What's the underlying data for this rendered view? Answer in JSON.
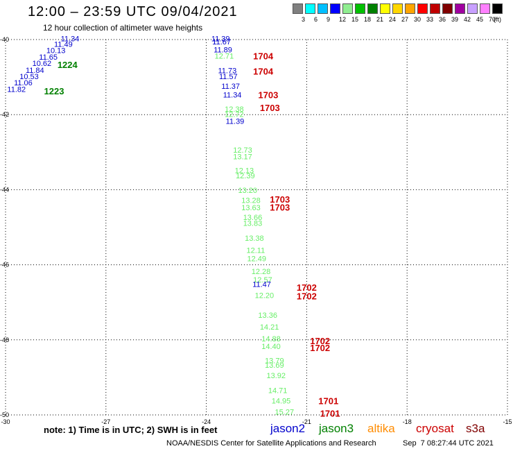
{
  "header": {
    "title": "12:00 – 23:59 UTC 09/04/2021",
    "subtitle": "12 hour collection of altimeter wave heights"
  },
  "legend": {
    "unit": "(ft)",
    "bins": [
      {
        "label": "3",
        "color": "#808080"
      },
      {
        "label": "6",
        "color": "#00ffff"
      },
      {
        "label": "9",
        "color": "#00bfff"
      },
      {
        "label": "12",
        "color": "#0000ff"
      },
      {
        "label": "15",
        "color": "#90ee90"
      },
      {
        "label": "18",
        "color": "#00c000"
      },
      {
        "label": "21",
        "color": "#008000"
      },
      {
        "label": "24",
        "color": "#ffff00"
      },
      {
        "label": "27",
        "color": "#ffd700"
      },
      {
        "label": "30",
        "color": "#ffa500"
      },
      {
        "label": "33",
        "color": "#ff0000"
      },
      {
        "label": "36",
        "color": "#c00000"
      },
      {
        "label": "39",
        "color": "#800000"
      },
      {
        "label": "42",
        "color": "#a000a0"
      },
      {
        "label": "45",
        "color": "#c8a0ff"
      },
      {
        "label": "70",
        "color": "#ff80ff"
      },
      {
        "label": "",
        "color": "#000000"
      }
    ]
  },
  "map": {
    "lon_ticks": [
      "-30",
      "-27",
      "-24",
      "-21",
      "-18",
      "-15"
    ],
    "lat_ticks": [
      "-40",
      "-42",
      "-44",
      "-46",
      "-48",
      "-50"
    ],
    "lon_range": [
      -30,
      -15
    ],
    "lat_range": [
      -50,
      -40
    ],
    "grid": "dotted"
  },
  "observations": [
    {
      "value": "11.34",
      "lon": -28.35,
      "lat": -39.97,
      "color": "#0000cc"
    },
    {
      "value": "11.49",
      "lon": -28.55,
      "lat": -40.12,
      "color": "#0000cc"
    },
    {
      "value": "10.13",
      "lon": -28.78,
      "lat": -40.29,
      "color": "#0000cc"
    },
    {
      "value": "11.65",
      "lon": -29.0,
      "lat": -40.46,
      "color": "#0000cc"
    },
    {
      "value": "10.62",
      "lon": -29.2,
      "lat": -40.63,
      "color": "#0000cc"
    },
    {
      "value": "11.84",
      "lon": -29.4,
      "lat": -40.81,
      "color": "#0000cc"
    },
    {
      "value": "10.53",
      "lon": -29.58,
      "lat": -40.98,
      "color": "#0000cc"
    },
    {
      "value": "11.06",
      "lon": -29.75,
      "lat": -41.15,
      "color": "#0000cc"
    },
    {
      "value": "11.82",
      "lon": -29.95,
      "lat": -41.32,
      "color": "#0000cc"
    },
    {
      "value": "11.39",
      "lon": -23.85,
      "lat": -39.97,
      "color": "#0000cc"
    },
    {
      "value": "11.67",
      "lon": -23.82,
      "lat": -40.06,
      "color": "#0000cc"
    },
    {
      "value": "11.89",
      "lon": -23.78,
      "lat": -40.27,
      "color": "#0000cc"
    },
    {
      "value": "12.71",
      "lon": -23.75,
      "lat": -40.43,
      "color": "#66ee66"
    },
    {
      "value": "11.73",
      "lon": -23.65,
      "lat": -40.82,
      "color": "#0000cc"
    },
    {
      "value": "11.57",
      "lon": -23.62,
      "lat": -40.98,
      "color": "#0000cc"
    },
    {
      "value": "11.37",
      "lon": -23.55,
      "lat": -41.24,
      "color": "#0000cc"
    },
    {
      "value": "11.34",
      "lon": -23.5,
      "lat": -41.47,
      "color": "#0000cc"
    },
    {
      "value": "12.38",
      "lon": -23.45,
      "lat": -41.85,
      "color": "#66ee66"
    },
    {
      "value": "12.72",
      "lon": -23.45,
      "lat": -41.99,
      "color": "#66ee66"
    },
    {
      "value": "11.39",
      "lon": -23.42,
      "lat": -42.17,
      "color": "#0000cc"
    },
    {
      "value": "12.73",
      "lon": -23.2,
      "lat": -42.94,
      "color": "#66ee66"
    },
    {
      "value": "13.17",
      "lon": -23.2,
      "lat": -43.11,
      "color": "#66ee66"
    },
    {
      "value": "12.13",
      "lon": -23.15,
      "lat": -43.48,
      "color": "#66ee66"
    },
    {
      "value": "12.39",
      "lon": -23.12,
      "lat": -43.62,
      "color": "#66ee66"
    },
    {
      "value": "13.20",
      "lon": -23.05,
      "lat": -44.01,
      "color": "#66ee66"
    },
    {
      "value": "13.28",
      "lon": -22.95,
      "lat": -44.28,
      "color": "#66ee66"
    },
    {
      "value": "13.63",
      "lon": -22.95,
      "lat": -44.47,
      "color": "#66ee66"
    },
    {
      "value": "13.66",
      "lon": -22.9,
      "lat": -44.73,
      "color": "#66ee66"
    },
    {
      "value": "13.83",
      "lon": -22.9,
      "lat": -44.89,
      "color": "#66ee66"
    },
    {
      "value": "13.38",
      "lon": -22.85,
      "lat": -45.29,
      "color": "#66ee66"
    },
    {
      "value": "12.11",
      "lon": -22.8,
      "lat": -45.61,
      "color": "#66ee66"
    },
    {
      "value": "12.49",
      "lon": -22.78,
      "lat": -45.83,
      "color": "#66ee66"
    },
    {
      "value": "12.28",
      "lon": -22.65,
      "lat": -46.17,
      "color": "#66ee66"
    },
    {
      "value": "12.57",
      "lon": -22.6,
      "lat": -46.4,
      "color": "#66ee66"
    },
    {
      "value": "11.47",
      "lon": -22.62,
      "lat": -46.52,
      "color": "#0000cc"
    },
    {
      "value": "12.20",
      "lon": -22.55,
      "lat": -46.81,
      "color": "#66ee66"
    },
    {
      "value": "13.36",
      "lon": -22.45,
      "lat": -47.34,
      "color": "#66ee66"
    },
    {
      "value": "14.21",
      "lon": -22.4,
      "lat": -47.65,
      "color": "#66ee66"
    },
    {
      "value": "14.88",
      "lon": -22.35,
      "lat": -47.97,
      "color": "#66ee66"
    },
    {
      "value": "14.40",
      "lon": -22.35,
      "lat": -48.17,
      "color": "#66ee66"
    },
    {
      "value": "13.79",
      "lon": -22.25,
      "lat": -48.55,
      "color": "#66ee66"
    },
    {
      "value": "13.69",
      "lon": -22.25,
      "lat": -48.67,
      "color": "#66ee66"
    },
    {
      "value": "13.92",
      "lon": -22.2,
      "lat": -48.95,
      "color": "#66ee66"
    },
    {
      "value": "14.71",
      "lon": -22.15,
      "lat": -49.34,
      "color": "#66ee66"
    },
    {
      "value": "14.95",
      "lon": -22.05,
      "lat": -49.62,
      "color": "#66ee66"
    },
    {
      "value": "15.27",
      "lon": -21.95,
      "lat": -49.92,
      "color": "#66ee66"
    }
  ],
  "time_markers": [
    {
      "value": "1224",
      "lon": -28.45,
      "lat": -40.67,
      "color": "#008000"
    },
    {
      "value": "1223",
      "lon": -28.85,
      "lat": -41.37,
      "color": "#008000"
    },
    {
      "value": "1704",
      "lon": -22.6,
      "lat": -40.43,
      "color": "#cc0000"
    },
    {
      "value": "1704",
      "lon": -22.6,
      "lat": -40.84,
      "color": "#cc0000"
    },
    {
      "value": "1703",
      "lon": -22.45,
      "lat": -41.47,
      "color": "#cc0000"
    },
    {
      "value": "1703",
      "lon": -22.4,
      "lat": -41.81,
      "color": "#cc0000"
    },
    {
      "value": "1703",
      "lon": -22.1,
      "lat": -44.25,
      "color": "#cc0000"
    },
    {
      "value": "1703",
      "lon": -22.1,
      "lat": -44.46,
      "color": "#cc0000"
    },
    {
      "value": "1702",
      "lon": -21.3,
      "lat": -46.6,
      "color": "#cc0000"
    },
    {
      "value": "1702",
      "lon": -21.3,
      "lat": -46.83,
      "color": "#cc0000"
    },
    {
      "value": "1702",
      "lon": -20.9,
      "lat": -48.02,
      "color": "#cc0000"
    },
    {
      "value": "1702",
      "lon": -20.9,
      "lat": -48.21,
      "color": "#cc0000"
    },
    {
      "value": "1701",
      "lon": -20.65,
      "lat": -49.62,
      "color": "#cc0000"
    },
    {
      "value": "1701",
      "lon": -20.6,
      "lat": -49.95,
      "color": "#cc0000"
    }
  ],
  "footer": {
    "note": "note: 1) Time is in UTC; 2) SWH is in feet",
    "satellites": [
      {
        "name": "jason2",
        "color": "#0000cc"
      },
      {
        "name": "jason3",
        "color": "#008000"
      },
      {
        "name": "altika",
        "color": "#ff8c00"
      },
      {
        "name": "cryosat",
        "color": "#cc0000"
      },
      {
        "name": "s3a",
        "color": "#800000"
      }
    ],
    "credit": "NOAA/NESDIS Center for Satellite Applications and Research",
    "timestamp": "Sep  7 08:27:44 UTC 2021"
  }
}
